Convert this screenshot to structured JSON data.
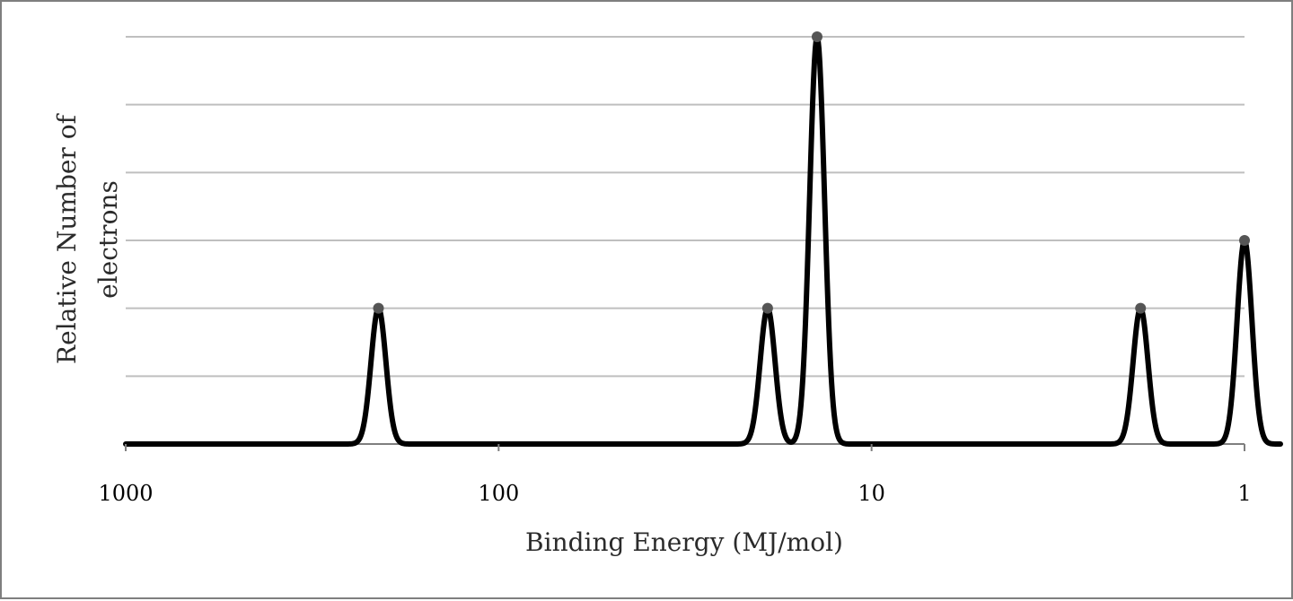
{
  "chart_data": {
    "type": "line",
    "title": "",
    "xlabel": "Binding Energy (MJ/mol)",
    "ylabel_lines": [
      "Relative Number of",
      "electrons"
    ],
    "x_scale": "log",
    "x_reversed": true,
    "xlim": [
      1000,
      0.7
    ],
    "x_ticks": [
      1000,
      100,
      10,
      1
    ],
    "x_tick_labels": [
      "1000",
      "100",
      "10",
      "1"
    ],
    "ylim": [
      0,
      6
    ],
    "y_gridlines": [
      1,
      2,
      3,
      4,
      5,
      6
    ],
    "grid": true,
    "legend": "none",
    "line_color": "#000000",
    "grid_color": "#bfbfbf",
    "peaks": [
      {
        "x": 210,
        "y": 2
      },
      {
        "x": 19,
        "y": 2
      },
      {
        "x": 14,
        "y": 6
      },
      {
        "x": 1.9,
        "y": 2
      },
      {
        "x": 1.0,
        "y": 3
      }
    ]
  }
}
